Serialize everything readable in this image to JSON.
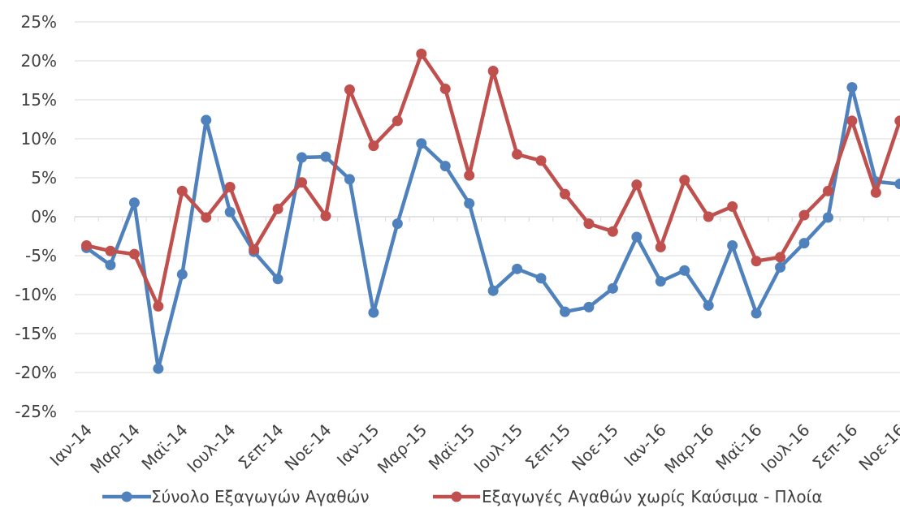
{
  "chart_data": {
    "type": "line",
    "title": "",
    "xlabel": "",
    "ylabel": "",
    "ylim": [
      -25,
      25
    ],
    "y_ticks": [
      25,
      20,
      15,
      10,
      5,
      0,
      -5,
      -10,
      -15,
      -20,
      -25
    ],
    "y_tick_labels": [
      "25%",
      "20%",
      "15%",
      "10%",
      "5%",
      "0%",
      "-5%",
      "-10%",
      "-15%",
      "-20%",
      "-25%"
    ],
    "grid": true,
    "legend_position": "bottom",
    "x_tick_labels": [
      "Ιαν-14",
      "Μαρ-14",
      "Μαϊ-14",
      "Ιουλ-14",
      "Σεπ-14",
      "Νοε-14",
      "Ιαν-15",
      "Μαρ-15",
      "Μαϊ-15",
      "Ιουλ-15",
      "Σεπ-15",
      "Νοε-15",
      "Ιαν-16",
      "Μαρ-16",
      "Μαϊ-16",
      "Ιουλ-16",
      "Σεπ-16",
      "Νοε-16"
    ],
    "x_tick_every": 2,
    "n_points": 35,
    "series": [
      {
        "name": "Σύνολο Εξαγωγών Αγαθών",
        "color": "#4f81bd",
        "values": [
          -4.0,
          -6.2,
          1.8,
          -19.5,
          -7.4,
          12.4,
          0.6,
          -4.5,
          -8.0,
          7.6,
          7.7,
          4.8,
          -12.3,
          -0.9,
          9.4,
          6.5,
          1.7,
          -9.5,
          -6.7,
          -7.9,
          -12.2,
          -11.6,
          -9.2,
          -2.6,
          -8.3,
          -6.9,
          -11.4,
          -3.7,
          -12.4,
          -6.5,
          -3.4,
          -0.1,
          16.6,
          4.5,
          4.2
        ]
      },
      {
        "name": "Εξαγωγές Αγαθών χωρίς Καύσιμα - Πλοία",
        "color": "#c0504d",
        "values": [
          -3.7,
          -4.4,
          -4.8,
          -11.5,
          3.3,
          -0.1,
          3.8,
          -4.2,
          1.0,
          4.4,
          0.1,
          16.3,
          9.1,
          12.3,
          20.9,
          16.4,
          5.3,
          18.7,
          8.0,
          7.2,
          2.9,
          -0.9,
          -1.9,
          4.1,
          -3.9,
          4.7,
          0.0,
          1.3,
          -5.7,
          -5.2,
          0.2,
          3.3,
          12.3,
          3.1,
          12.3
        ]
      }
    ]
  }
}
